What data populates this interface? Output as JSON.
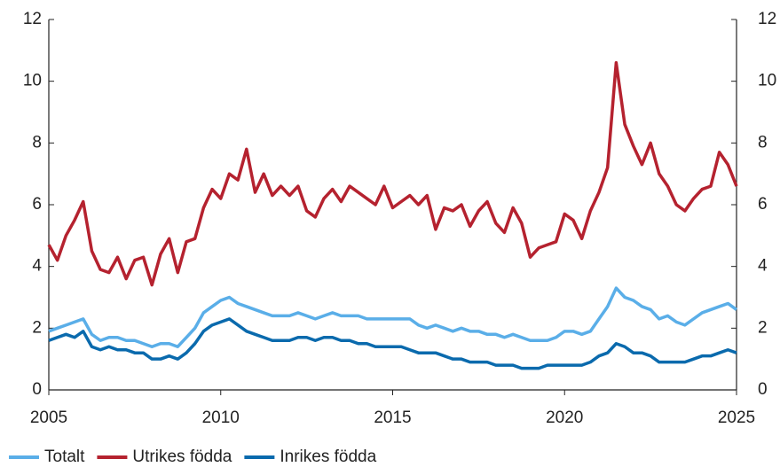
{
  "chart_data": {
    "type": "line",
    "x": [
      2005,
      2005.25,
      2005.5,
      2005.75,
      2006,
      2006.25,
      2006.5,
      2006.75,
      2007,
      2007.25,
      2007.5,
      2007.75,
      2008,
      2008.25,
      2008.5,
      2008.75,
      2009,
      2009.25,
      2009.5,
      2009.75,
      2010,
      2010.25,
      2010.5,
      2010.75,
      2011,
      2011.25,
      2011.5,
      2011.75,
      2012,
      2012.25,
      2012.5,
      2012.75,
      2013,
      2013.25,
      2013.5,
      2013.75,
      2014,
      2014.25,
      2014.5,
      2014.75,
      2015,
      2015.25,
      2015.5,
      2015.75,
      2016,
      2016.25,
      2016.5,
      2016.75,
      2017,
      2017.25,
      2017.5,
      2017.75,
      2018,
      2018.25,
      2018.5,
      2018.75,
      2019,
      2019.25,
      2019.5,
      2019.75,
      2020,
      2020.25,
      2020.5,
      2020.75,
      2021,
      2021.25,
      2021.5,
      2021.75,
      2022,
      2022.25,
      2022.5,
      2022.75,
      2023,
      2023.25,
      2023.5,
      2023.75,
      2024,
      2024.25,
      2024.5,
      2024.75,
      2025
    ],
    "series": [
      {
        "name": "Totalt",
        "color": "#5aaee8",
        "values": [
          1.9,
          2.0,
          2.1,
          2.2,
          2.3,
          1.8,
          1.6,
          1.7,
          1.7,
          1.6,
          1.6,
          1.5,
          1.4,
          1.5,
          1.5,
          1.4,
          1.7,
          2.0,
          2.5,
          2.7,
          2.9,
          3.0,
          2.8,
          2.7,
          2.6,
          2.5,
          2.4,
          2.4,
          2.4,
          2.5,
          2.4,
          2.3,
          2.4,
          2.5,
          2.4,
          2.4,
          2.4,
          2.3,
          2.3,
          2.3,
          2.3,
          2.3,
          2.3,
          2.1,
          2.0,
          2.1,
          2.0,
          1.9,
          2.0,
          1.9,
          1.9,
          1.8,
          1.8,
          1.7,
          1.8,
          1.7,
          1.6,
          1.6,
          1.6,
          1.7,
          1.9,
          1.9,
          1.8,
          1.9,
          2.3,
          2.7,
          3.3,
          3.0,
          2.9,
          2.7,
          2.6,
          2.3,
          2.4,
          2.2,
          2.1,
          2.3,
          2.5,
          2.6,
          2.7,
          2.8,
          2.6
        ]
      },
      {
        "name": "Utrikes födda",
        "color": "#b5222f",
        "values": [
          4.7,
          4.2,
          5.0,
          5.5,
          6.1,
          4.5,
          3.9,
          3.8,
          4.3,
          3.6,
          4.2,
          4.3,
          3.4,
          4.4,
          4.9,
          3.8,
          4.8,
          4.9,
          5.9,
          6.5,
          6.2,
          7.0,
          6.8,
          7.8,
          6.4,
          7.0,
          6.3,
          6.6,
          6.3,
          6.6,
          5.8,
          5.6,
          6.2,
          6.5,
          6.1,
          6.6,
          6.4,
          6.2,
          6.0,
          6.6,
          5.9,
          6.1,
          6.3,
          6.0,
          6.3,
          5.2,
          5.9,
          5.8,
          6.0,
          5.3,
          5.8,
          6.1,
          5.4,
          5.1,
          5.9,
          5.4,
          4.3,
          4.6,
          4.7,
          4.8,
          5.7,
          5.5,
          4.9,
          5.8,
          6.4,
          7.2,
          10.6,
          8.6,
          7.9,
          7.3,
          8.0,
          7.0,
          6.6,
          6.0,
          5.8,
          6.2,
          6.5,
          6.6,
          7.7,
          7.3,
          6.6
        ]
      },
      {
        "name": "Inrikes födda",
        "color": "#0a6aad",
        "values": [
          1.6,
          1.7,
          1.8,
          1.7,
          1.9,
          1.4,
          1.3,
          1.4,
          1.3,
          1.3,
          1.2,
          1.2,
          1.0,
          1.0,
          1.1,
          1.0,
          1.2,
          1.5,
          1.9,
          2.1,
          2.2,
          2.3,
          2.1,
          1.9,
          1.8,
          1.7,
          1.6,
          1.6,
          1.6,
          1.7,
          1.7,
          1.6,
          1.7,
          1.7,
          1.6,
          1.6,
          1.5,
          1.5,
          1.4,
          1.4,
          1.4,
          1.4,
          1.3,
          1.2,
          1.2,
          1.2,
          1.1,
          1.0,
          1.0,
          0.9,
          0.9,
          0.9,
          0.8,
          0.8,
          0.8,
          0.7,
          0.7,
          0.7,
          0.8,
          0.8,
          0.8,
          0.8,
          0.8,
          0.9,
          1.1,
          1.2,
          1.5,
          1.4,
          1.2,
          1.2,
          1.1,
          0.9,
          0.9,
          0.9,
          0.9,
          1.0,
          1.1,
          1.1,
          1.2,
          1.3,
          1.2
        ]
      }
    ],
    "xlim": [
      2005,
      2025
    ],
    "xticks": [
      2005,
      2010,
      2015,
      2020,
      2025
    ],
    "ylim": [
      0,
      12
    ],
    "yticks": [
      0,
      2,
      4,
      6,
      8,
      10,
      12
    ],
    "y2lim": [
      0,
      12
    ],
    "y2ticks": [
      0,
      2,
      4,
      6,
      8,
      10,
      12
    ],
    "legend": "bottom"
  }
}
